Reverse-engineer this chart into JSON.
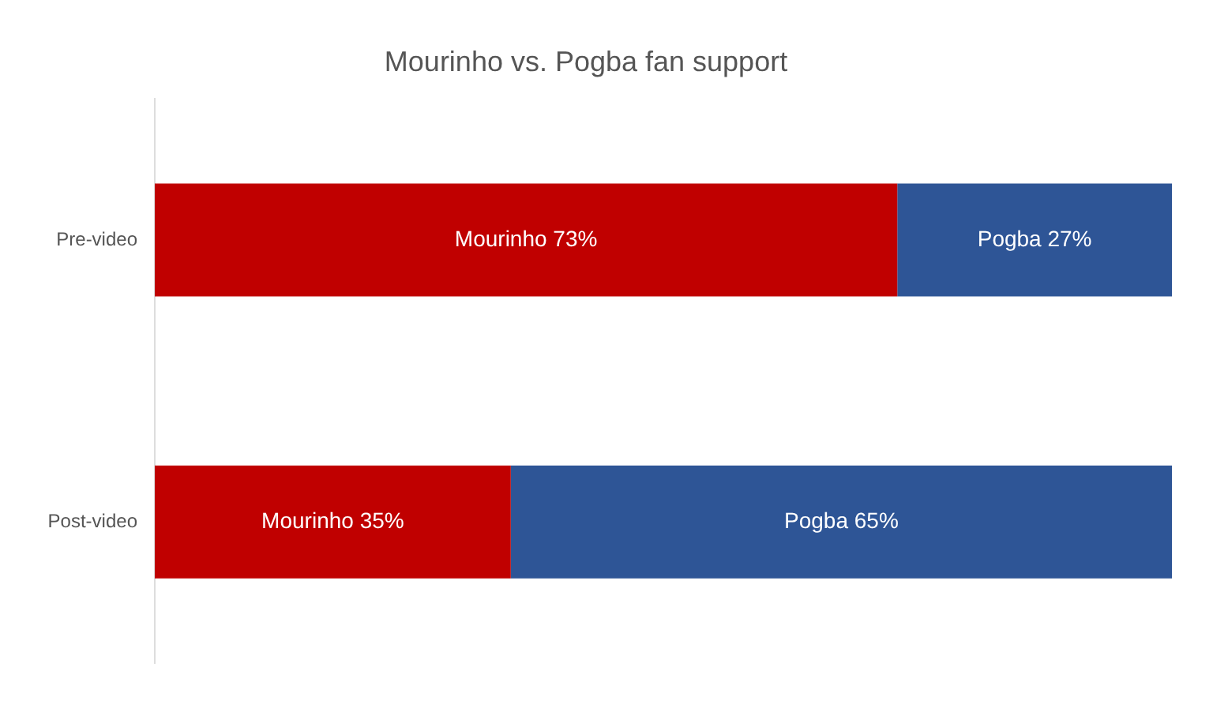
{
  "chart_data": {
    "type": "bar",
    "orientation": "horizontal",
    "stacked": true,
    "title": "Mourinho vs. Pogba fan support",
    "categories": [
      "Pre-video",
      "Post-video"
    ],
    "series": [
      {
        "name": "Mourinho",
        "color": "#c00000",
        "values": [
          73,
          35
        ],
        "value_labels": [
          "73%",
          "35%"
        ]
      },
      {
        "name": "Pogba",
        "color": "#2e5596",
        "values": [
          27,
          65
        ],
        "value_labels": [
          "27%",
          "65%"
        ]
      }
    ],
    "xlim": [
      0,
      100
    ],
    "tick_labels": "y",
    "grid": false,
    "legend": false
  }
}
